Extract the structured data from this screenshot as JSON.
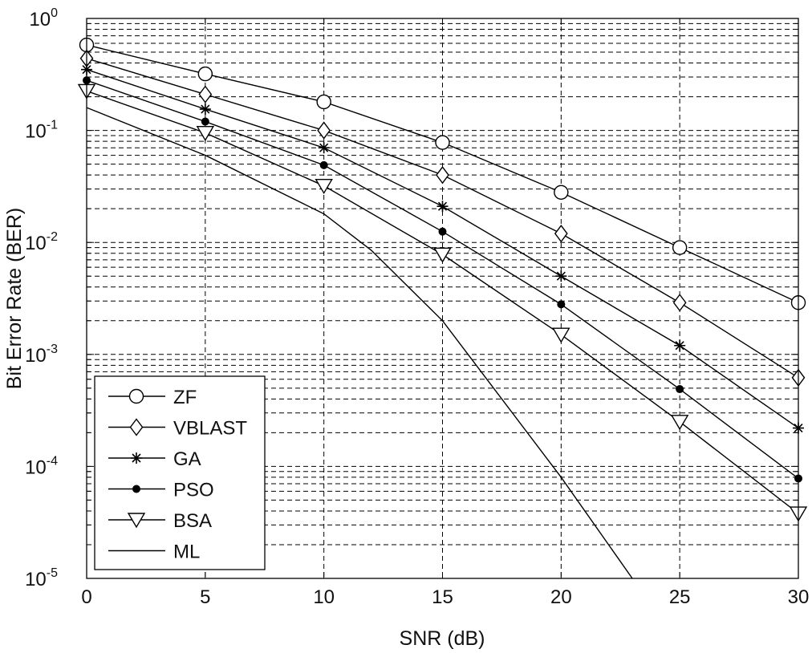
{
  "chart_data": {
    "type": "line",
    "title": "",
    "xlabel": "SNR (dB)",
    "ylabel": "Bit Error Rate (BER)",
    "xscale": "linear",
    "yscale": "log",
    "xlim": [
      0,
      30
    ],
    "ylim": [
      1e-05,
      1
    ],
    "grid": true,
    "legend_position": "bottom-left",
    "x_ticks": [
      0,
      5,
      10,
      15,
      20,
      25,
      30
    ],
    "x_tick_labels": [
      "0",
      "5",
      "10",
      "15",
      "20",
      "25",
      "30"
    ],
    "y_ticks": [
      {
        "value": 1,
        "base": "10",
        "exp": "0"
      },
      {
        "value": 0.1,
        "base": "10",
        "exp": "-1"
      },
      {
        "value": 0.01,
        "base": "10",
        "exp": "-2"
      },
      {
        "value": 0.001,
        "base": "10",
        "exp": "-3"
      },
      {
        "value": 0.0001,
        "base": "10",
        "exp": "-4"
      },
      {
        "value": 1e-05,
        "base": "10",
        "exp": "-5"
      }
    ],
    "series": [
      {
        "name": "ZF",
        "marker": "circle",
        "x": [
          0,
          5,
          10,
          15,
          20,
          25,
          30
        ],
        "values": [
          0.58,
          0.32,
          0.18,
          0.078,
          0.028,
          0.009,
          0.0029
        ]
      },
      {
        "name": "VBLAST",
        "marker": "diamond",
        "x": [
          0,
          5,
          10,
          15,
          20,
          25,
          30
        ],
        "values": [
          0.44,
          0.21,
          0.1,
          0.04,
          0.012,
          0.0029,
          0.00062
        ]
      },
      {
        "name": "GA",
        "marker": "star",
        "x": [
          0,
          5,
          10,
          15,
          20,
          25,
          30
        ],
        "values": [
          0.35,
          0.155,
          0.07,
          0.021,
          0.005,
          0.0012,
          0.00022
        ]
      },
      {
        "name": "PSO",
        "marker": "dot",
        "x": [
          0,
          5,
          10,
          15,
          20,
          25,
          30
        ],
        "values": [
          0.28,
          0.12,
          0.049,
          0.0125,
          0.0028,
          0.00049,
          7.8e-05
        ]
      },
      {
        "name": "BSA",
        "marker": "triangle-down",
        "x": [
          0,
          5,
          10,
          15,
          20,
          25,
          30
        ],
        "values": [
          0.225,
          0.095,
          0.032,
          0.0078,
          0.0015,
          0.00025,
          3.8e-05
        ]
      },
      {
        "name": "ML",
        "marker": "none",
        "x": [
          0,
          5,
          10,
          12,
          15,
          20,
          23
        ],
        "values": [
          0.16,
          0.06,
          0.018,
          0.0085,
          0.002,
          8e-05,
          1e-05
        ]
      }
    ]
  }
}
